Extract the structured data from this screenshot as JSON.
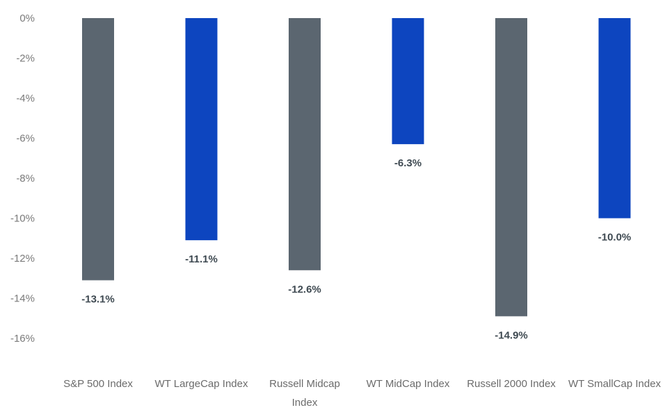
{
  "chart_data": {
    "type": "bar",
    "title": "",
    "xlabel": "",
    "ylabel": "",
    "ylim": [
      -16,
      0
    ],
    "yticks": [
      0,
      -2,
      -4,
      -6,
      -8,
      -10,
      -12,
      -14,
      -16
    ],
    "ytick_labels": [
      "0%",
      "-2%",
      "-4%",
      "-6%",
      "-8%",
      "-10%",
      "-12%",
      "-14%",
      "-16%"
    ],
    "grid": false,
    "legend": "none",
    "categories": [
      [
        "S&P 500 Index"
      ],
      [
        "WT LargeCap Index"
      ],
      [
        "Russell Midcap",
        "Index"
      ],
      [
        "WT MidCap Index"
      ],
      [
        "Russell 2000 Index"
      ],
      [
        "WT SmallCap Index"
      ]
    ],
    "values": [
      -13.1,
      -11.1,
      -12.6,
      -6.3,
      -14.9,
      -10.0
    ],
    "data_labels": [
      "-13.1%",
      "-11.1%",
      "-12.6%",
      "-6.3%",
      "-14.9%",
      "-10.0%"
    ],
    "colors": [
      "#5b6670",
      "#0d45bf",
      "#5b6670",
      "#0d45bf",
      "#5b6670",
      "#0d45bf"
    ]
  }
}
